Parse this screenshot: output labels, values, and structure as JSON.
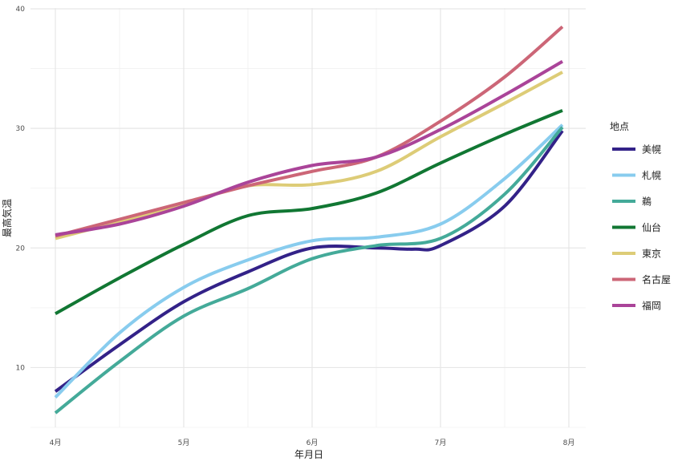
{
  "chart_data": {
    "type": "line",
    "title": "",
    "xlabel": "年月日",
    "ylabel": "最高気温",
    "x_ticks": [
      "4月",
      "5月",
      "6月",
      "7月",
      "8月"
    ],
    "y_ticks": [
      "10",
      "20",
      "30",
      "40"
    ],
    "x_range": [
      "4月",
      "8月"
    ],
    "ylim": [
      5,
      40
    ],
    "grid": true,
    "legend_title": "地点",
    "legend_position": "right",
    "series": [
      {
        "name": "美幌",
        "color": "#332288",
        "points": [
          [
            0,
            8.0
          ],
          [
            0.5,
            11.9
          ],
          [
            1,
            15.5
          ],
          [
            1.5,
            18.0
          ],
          [
            2,
            20.0
          ],
          [
            2.5,
            20.0
          ],
          [
            2.8,
            19.9
          ],
          [
            3,
            20.2
          ],
          [
            3.5,
            23.5
          ],
          [
            3.95,
            29.8
          ]
        ]
      },
      {
        "name": "札幌",
        "color": "#88CCEE",
        "points": [
          [
            0,
            7.5
          ],
          [
            0.5,
            12.9
          ],
          [
            1,
            16.7
          ],
          [
            1.5,
            19.0
          ],
          [
            2,
            20.6
          ],
          [
            2.5,
            20.9
          ],
          [
            3,
            22.0
          ],
          [
            3.5,
            25.8
          ],
          [
            3.95,
            30.3
          ]
        ]
      },
      {
        "name": "鵜",
        "color": "#44AA99",
        "points": [
          [
            0,
            6.2
          ],
          [
            0.5,
            10.5
          ],
          [
            1,
            14.3
          ],
          [
            1.5,
            16.6
          ],
          [
            2,
            19.1
          ],
          [
            2.5,
            20.2
          ],
          [
            3,
            20.8
          ],
          [
            3.5,
            24.5
          ],
          [
            3.95,
            30.1
          ]
        ]
      },
      {
        "name": "仙台",
        "color": "#117733",
        "points": [
          [
            0,
            14.5
          ],
          [
            0.5,
            17.5
          ],
          [
            1,
            20.3
          ],
          [
            1.5,
            22.7
          ],
          [
            2,
            23.3
          ],
          [
            2.5,
            24.6
          ],
          [
            3,
            27.1
          ],
          [
            3.5,
            29.5
          ],
          [
            3.95,
            31.5
          ]
        ]
      },
      {
        "name": "東京",
        "color": "#DDCC77",
        "points": [
          [
            0,
            20.8
          ],
          [
            0.5,
            22.2
          ],
          [
            1,
            23.7
          ],
          [
            1.5,
            25.2
          ],
          [
            2,
            25.3
          ],
          [
            2.5,
            26.4
          ],
          [
            3,
            29.3
          ],
          [
            3.5,
            32.1
          ],
          [
            3.95,
            34.7
          ]
        ]
      },
      {
        "name": "名古屋",
        "color": "#CC6677",
        "points": [
          [
            0,
            21.0
          ],
          [
            0.5,
            22.4
          ],
          [
            1,
            23.8
          ],
          [
            1.5,
            25.2
          ],
          [
            2,
            26.4
          ],
          [
            2.5,
            27.6
          ],
          [
            3,
            30.6
          ],
          [
            3.5,
            34.3
          ],
          [
            3.95,
            38.5
          ]
        ]
      },
      {
        "name": "福岡",
        "color": "#AA4499",
        "points": [
          [
            0,
            21.1
          ],
          [
            0.5,
            22.0
          ],
          [
            1,
            23.5
          ],
          [
            1.5,
            25.5
          ],
          [
            2,
            26.9
          ],
          [
            2.5,
            27.6
          ],
          [
            3,
            29.9
          ],
          [
            3.5,
            32.8
          ],
          [
            3.95,
            35.6
          ]
        ]
      }
    ]
  }
}
